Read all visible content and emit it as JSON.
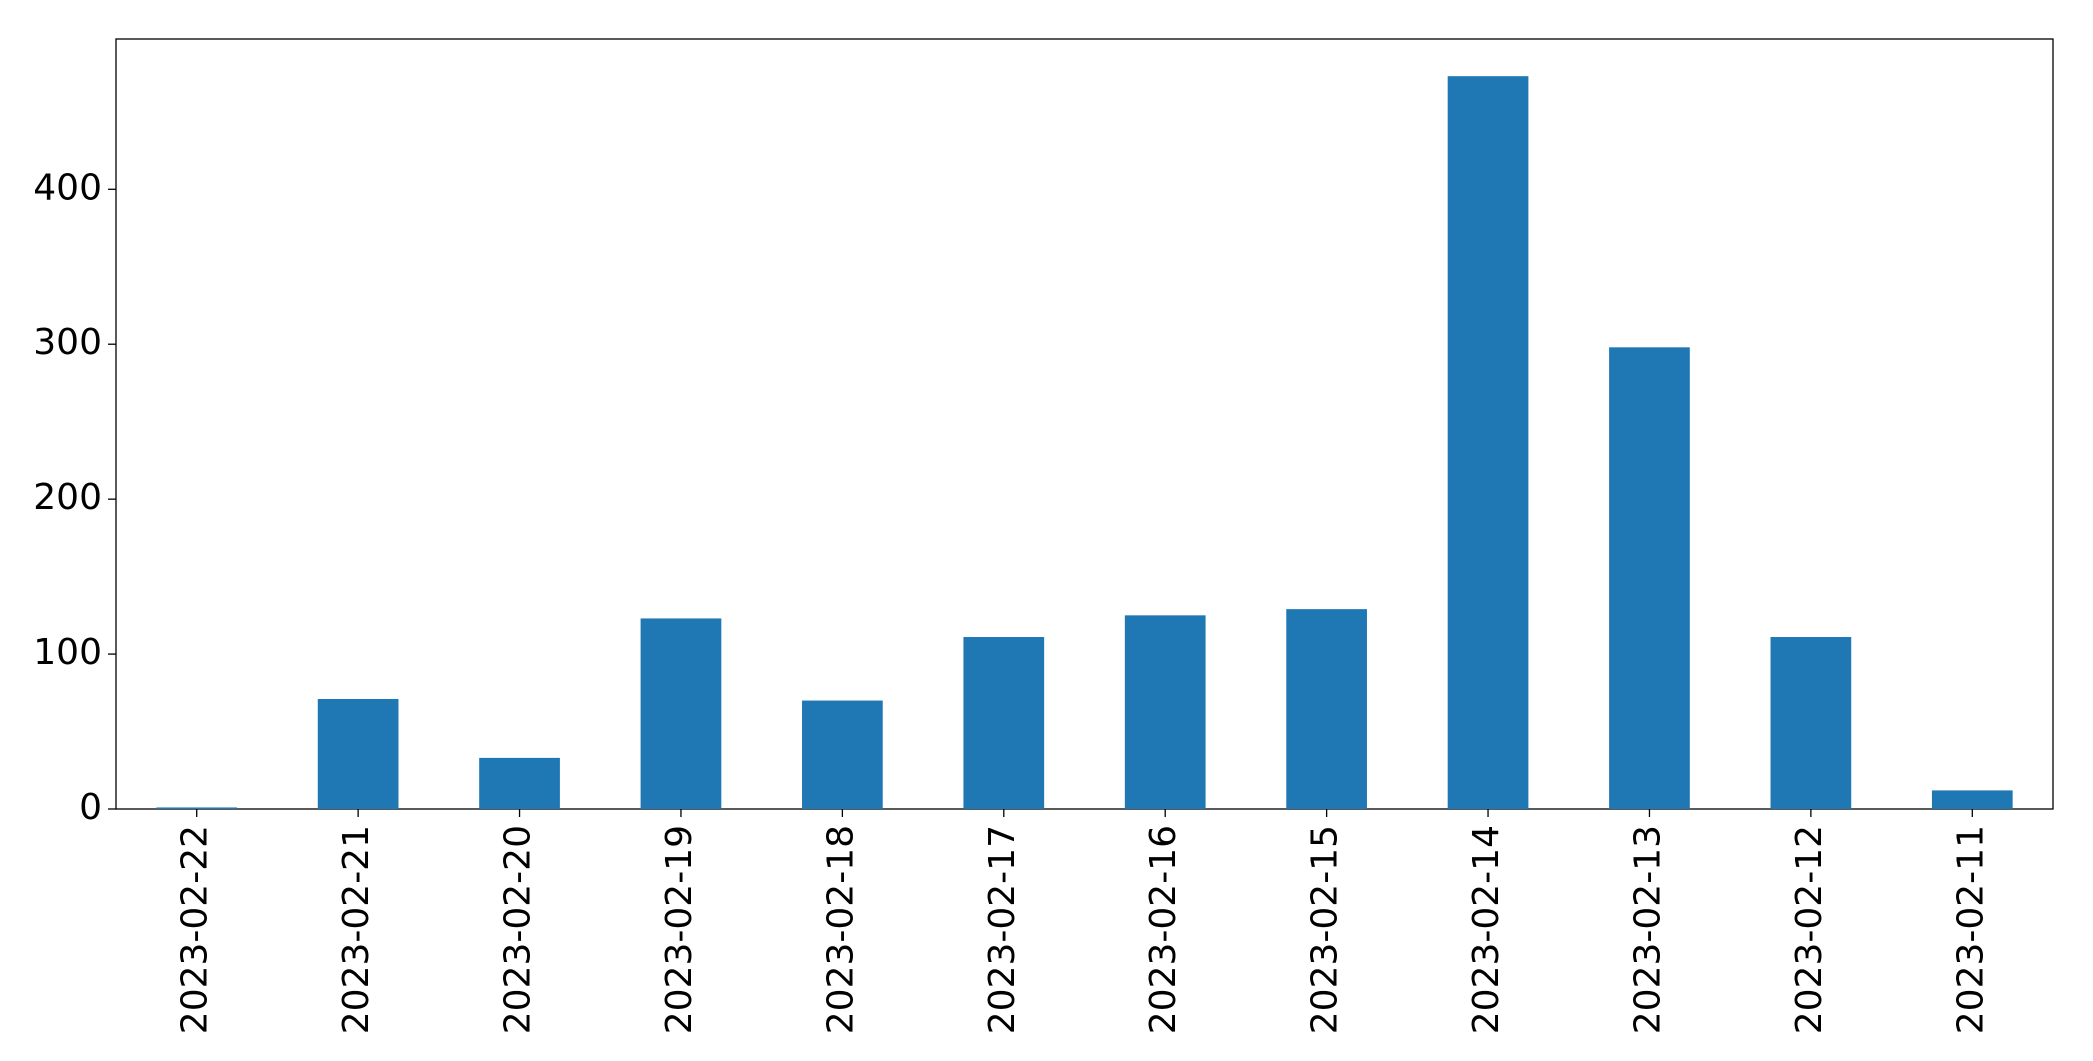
{
  "chart_data": {
    "type": "bar",
    "categories": [
      "2023-02-22",
      "2023-02-21",
      "2023-02-20",
      "2023-02-19",
      "2023-02-18",
      "2023-02-17",
      "2023-02-16",
      "2023-02-15",
      "2023-02-14",
      "2023-02-13",
      "2023-02-12",
      "2023-02-11"
    ],
    "values": [
      1,
      71,
      33,
      123,
      70,
      111,
      125,
      129,
      473,
      298,
      111,
      12
    ],
    "color": "#1f77b4",
    "ylim": [
      0,
      497
    ],
    "yticks": [
      0,
      100,
      200,
      300,
      400
    ],
    "grid": false
  }
}
